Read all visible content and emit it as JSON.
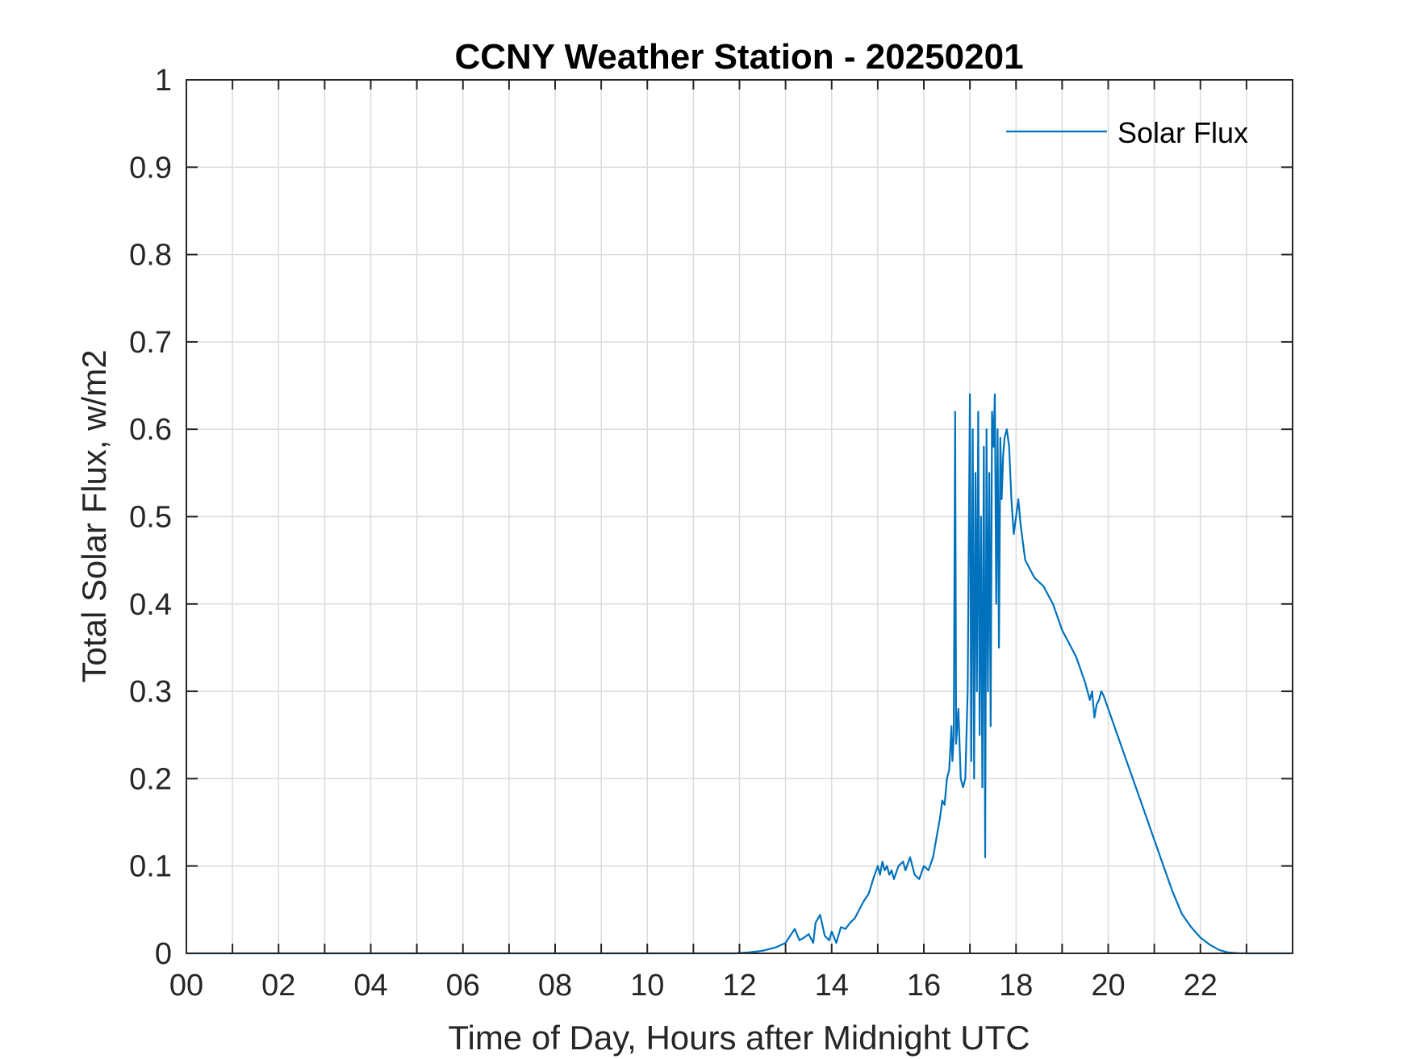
{
  "chart_data": {
    "type": "line",
    "title": "CCNY Weather Station - 20250201",
    "xlabel": "Time of Day, Hours after Midnight UTC",
    "ylabel": "Total Solar Flux, w/m2",
    "xlim": [
      0,
      24
    ],
    "ylim": [
      0,
      1
    ],
    "x_ticks": [
      0,
      2,
      4,
      6,
      8,
      10,
      12,
      14,
      16,
      18,
      20,
      22
    ],
    "x_tick_labels": [
      "00",
      "02",
      "04",
      "06",
      "08",
      "10",
      "12",
      "14",
      "16",
      "18",
      "20",
      "22"
    ],
    "y_ticks": [
      0,
      0.1,
      0.2,
      0.3,
      0.4,
      0.5,
      0.6,
      0.7,
      0.8,
      0.9,
      1
    ],
    "y_tick_labels": [
      "0",
      "0.1",
      "0.2",
      "0.3",
      "0.4",
      "0.5",
      "0.6",
      "0.7",
      "0.8",
      "0.9",
      "1"
    ],
    "grid": true,
    "legend_position": "top-right",
    "colors": {
      "series": "#0072BD",
      "grid": "#dcdcdc",
      "axis": "#262626"
    },
    "series": [
      {
        "name": "Solar Flux",
        "x": [
          0,
          11.9,
          12.2,
          12.5,
          12.8,
          13.0,
          13.1,
          13.2,
          13.3,
          13.4,
          13.5,
          13.6,
          13.65,
          13.75,
          13.85,
          13.95,
          14.0,
          14.1,
          14.2,
          14.3,
          14.4,
          14.5,
          14.6,
          14.7,
          14.8,
          14.9,
          15.0,
          15.05,
          15.1,
          15.15,
          15.2,
          15.25,
          15.3,
          15.35,
          15.45,
          15.55,
          15.6,
          15.7,
          15.8,
          15.9,
          16.0,
          16.1,
          16.2,
          16.3,
          16.35,
          16.4,
          16.45,
          16.5,
          16.55,
          16.6,
          16.62,
          16.65,
          16.68,
          16.7,
          16.75,
          16.8,
          16.85,
          16.9,
          16.95,
          17.0,
          17.03,
          17.06,
          17.09,
          17.12,
          17.15,
          17.18,
          17.21,
          17.24,
          17.27,
          17.3,
          17.33,
          17.36,
          17.39,
          17.42,
          17.45,
          17.48,
          17.51,
          17.54,
          17.57,
          17.6,
          17.63,
          17.66,
          17.69,
          17.72,
          17.75,
          17.8,
          17.85,
          17.9,
          17.95,
          18.0,
          18.05,
          18.1,
          18.15,
          18.2,
          18.3,
          18.4,
          18.5,
          18.6,
          18.7,
          18.8,
          18.9,
          19.0,
          19.1,
          19.2,
          19.3,
          19.4,
          19.5,
          19.6,
          19.65,
          19.7,
          19.75,
          19.8,
          19.85,
          19.9,
          20.0,
          20.2,
          20.4,
          20.6,
          20.8,
          21.0,
          21.2,
          21.4,
          21.6,
          21.8,
          22.0,
          22.2,
          22.4,
          22.6,
          22.8,
          23.0,
          23.5,
          23.95
        ],
        "values": [
          0,
          0,
          0.001,
          0.003,
          0.007,
          0.012,
          0.02,
          0.028,
          0.015,
          0.018,
          0.022,
          0.012,
          0.035,
          0.044,
          0.02,
          0.015,
          0.025,
          0.012,
          0.03,
          0.028,
          0.035,
          0.04,
          0.05,
          0.06,
          0.068,
          0.085,
          0.1,
          0.09,
          0.105,
          0.095,
          0.1,
          0.09,
          0.095,
          0.085,
          0.1,
          0.105,
          0.095,
          0.11,
          0.09,
          0.085,
          0.1,
          0.095,
          0.11,
          0.14,
          0.155,
          0.175,
          0.17,
          0.2,
          0.21,
          0.26,
          0.22,
          0.25,
          0.62,
          0.24,
          0.28,
          0.2,
          0.19,
          0.2,
          0.3,
          0.64,
          0.22,
          0.6,
          0.2,
          0.55,
          0.3,
          0.62,
          0.25,
          0.5,
          0.19,
          0.58,
          0.11,
          0.6,
          0.3,
          0.55,
          0.26,
          0.62,
          0.58,
          0.64,
          0.4,
          0.6,
          0.35,
          0.59,
          0.52,
          0.57,
          0.59,
          0.6,
          0.58,
          0.52,
          0.48,
          0.5,
          0.52,
          0.49,
          0.47,
          0.45,
          0.44,
          0.43,
          0.425,
          0.42,
          0.41,
          0.4,
          0.385,
          0.37,
          0.36,
          0.35,
          0.34,
          0.325,
          0.31,
          0.29,
          0.3,
          0.27,
          0.285,
          0.29,
          0.3,
          0.295,
          0.28,
          0.25,
          0.22,
          0.19,
          0.16,
          0.13,
          0.1,
          0.07,
          0.045,
          0.03,
          0.018,
          0.01,
          0.004,
          0.001,
          0.0003,
          0,
          0,
          0
        ]
      }
    ]
  }
}
